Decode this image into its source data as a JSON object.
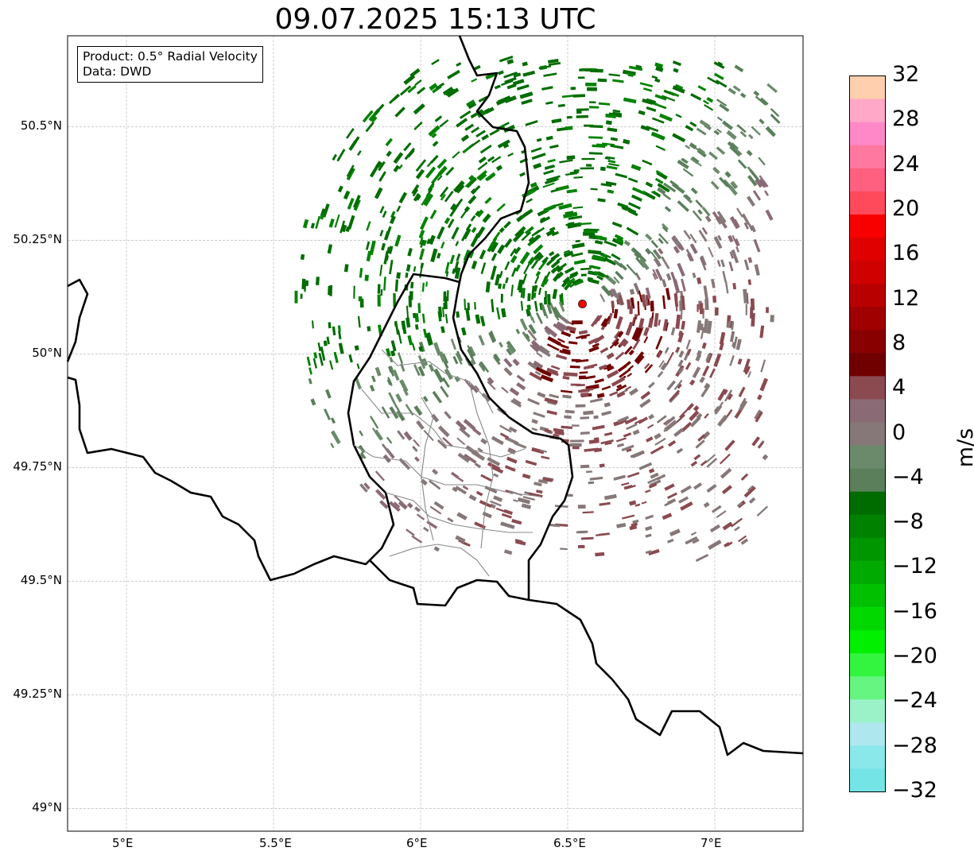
{
  "title": "09.07.2025 15:13 UTC",
  "info_box": {
    "line1": "Product: 0.5° Radial Velocity",
    "line2": "Data: DWD"
  },
  "map": {
    "lon_range": [
      4.8,
      7.3
    ],
    "lat_range": [
      48.95,
      50.7
    ],
    "radar_site": {
      "lon": 6.55,
      "lat": 50.11,
      "color": "#ff0000"
    },
    "gridlines": true
  },
  "axes": {
    "lon_ticks": [
      {
        "value": 5.0,
        "label": "5°E"
      },
      {
        "value": 5.5,
        "label": "5.5°E"
      },
      {
        "value": 6.0,
        "label": "6°E"
      },
      {
        "value": 6.5,
        "label": "6.5°E"
      },
      {
        "value": 7.0,
        "label": "7°E"
      }
    ],
    "lat_ticks": [
      {
        "value": 50.5,
        "label": "50.5°N"
      },
      {
        "value": 50.25,
        "label": "50.25°N"
      },
      {
        "value": 50.0,
        "label": "50°N"
      },
      {
        "value": 49.75,
        "label": "49.75°N"
      },
      {
        "value": 49.5,
        "label": "49.5°N"
      },
      {
        "value": 49.25,
        "label": "49.25°N"
      },
      {
        "value": 49.0,
        "label": "49°N"
      }
    ]
  },
  "colorbar": {
    "unit": "m/s",
    "min": -32,
    "max": 32,
    "tick_labels": [
      "32",
      "28",
      "24",
      "20",
      "16",
      "12",
      "8",
      "4",
      "0",
      "−4",
      "−8",
      "−12",
      "−16",
      "−20",
      "−24",
      "−28",
      "−32"
    ],
    "colors_bottom_to_top": [
      "#74e4e6",
      "#8ae8ea",
      "#aee8ee",
      "#9cf2c8",
      "#66f580",
      "#33f540",
      "#00f000",
      "#00d800",
      "#00c000",
      "#00aa00",
      "#009600",
      "#008200",
      "#006c00",
      "#5b7f5b",
      "#6b8a6b",
      "#867878",
      "#8a6a75",
      "#8a4a50",
      "#700000",
      "#880000",
      "#a00000",
      "#b80000",
      "#d00000",
      "#e00000",
      "#f80000",
      "#ff4a5c",
      "#ff6080",
      "#ff78a0",
      "#ff88c8",
      "#ffa8c8",
      "#ffcfae"
    ]
  }
}
